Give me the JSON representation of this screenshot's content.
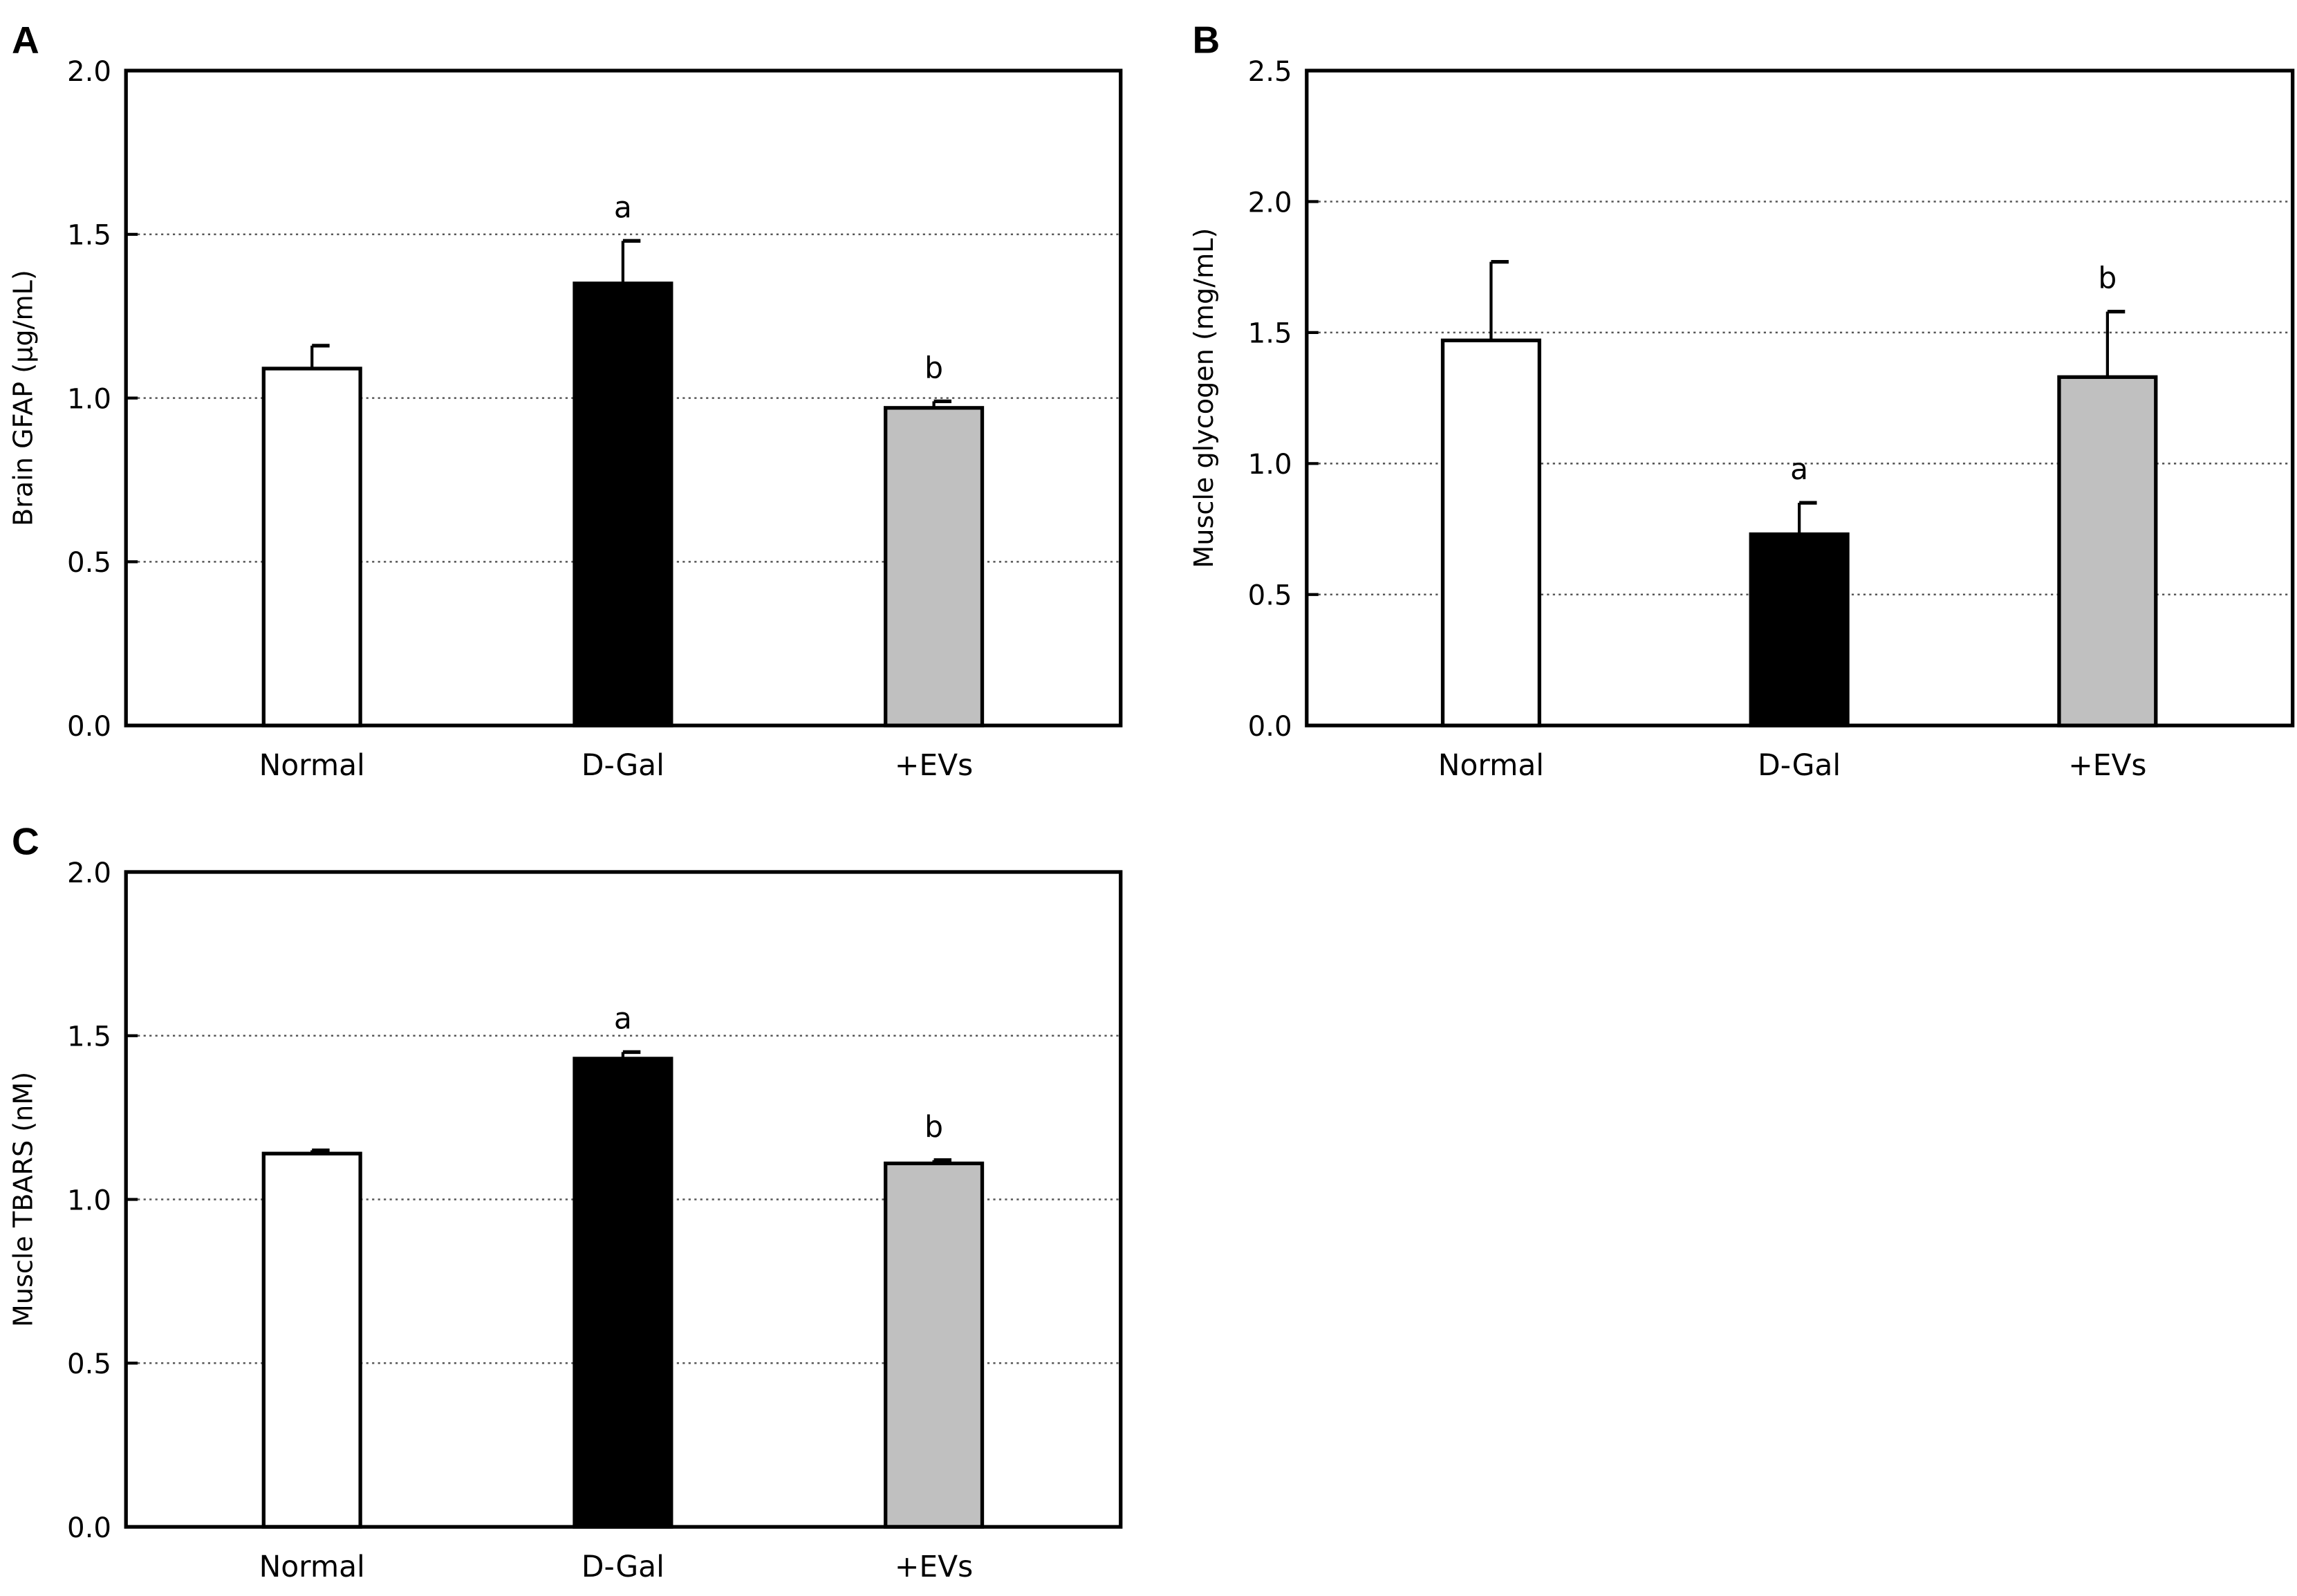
{
  "chart_data": [
    {
      "panel": "A",
      "type": "bar",
      "categories": [
        "Normal",
        "D-Gal",
        "+EVs"
      ],
      "values": [
        1.09,
        1.35,
        0.97
      ],
      "errors": [
        0.07,
        0.13,
        0.02
      ],
      "annotations": [
        "",
        "a",
        "b"
      ],
      "bar_colors": [
        "#ffffff",
        "#000000",
        "#c0c0c0"
      ],
      "ylabel": "Brain GFAP (µg/mL)",
      "xlabel": "",
      "ylim": [
        0,
        2.0
      ],
      "yticks": [
        "0.0",
        "0.5",
        "1.0",
        "1.5",
        "2.0"
      ],
      "grid": "horizontal dotted"
    },
    {
      "panel": "B",
      "type": "bar",
      "categories": [
        "Normal",
        "D-Gal",
        "+EVs"
      ],
      "values": [
        1.47,
        0.73,
        1.33
      ],
      "errors": [
        0.3,
        0.12,
        0.25
      ],
      "annotations": [
        "",
        "a",
        "b"
      ],
      "bar_colors": [
        "#ffffff",
        "#000000",
        "#c0c0c0"
      ],
      "ylabel": "Muscle glycogen (mg/mL)",
      "xlabel": "",
      "ylim": [
        0,
        2.5
      ],
      "yticks": [
        "0.0",
        "0.5",
        "1.0",
        "1.5",
        "2.0",
        "2.5"
      ],
      "grid": "horizontal dotted"
    },
    {
      "panel": "C",
      "type": "bar",
      "categories": [
        "Normal",
        "D-Gal",
        "+EVs"
      ],
      "values": [
        1.14,
        1.43,
        1.11
      ],
      "errors": [
        0.01,
        0.02,
        0.01
      ],
      "annotations": [
        "",
        "a",
        "b"
      ],
      "bar_colors": [
        "#ffffff",
        "#000000",
        "#c0c0c0"
      ],
      "ylabel": "Muscle TBARS (nM)",
      "xlabel": "",
      "ylim": [
        0,
        2.0
      ],
      "yticks": [
        "0.0",
        "0.5",
        "1.0",
        "1.5",
        "2.0"
      ],
      "grid": "horizontal dotted"
    }
  ]
}
